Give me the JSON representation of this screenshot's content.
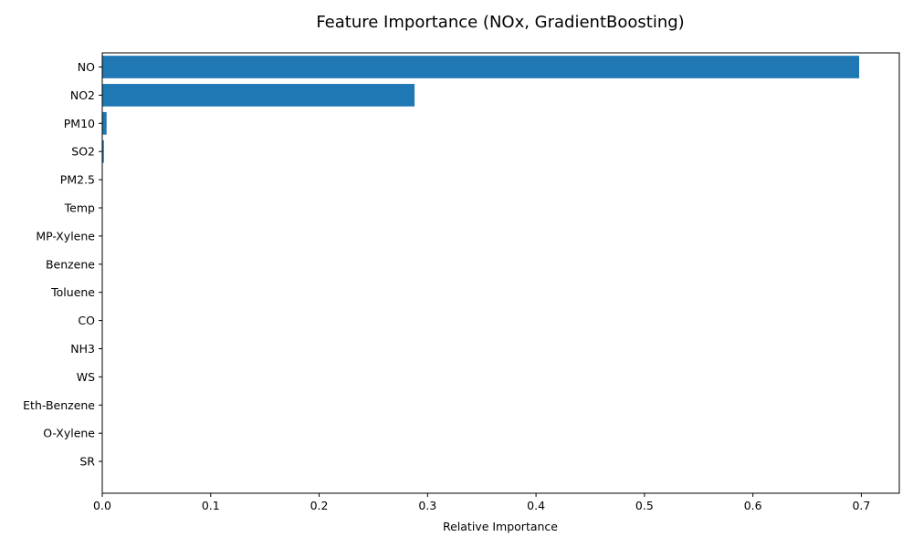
{
  "chart_data": {
    "type": "bar",
    "orientation": "horizontal",
    "title": "Feature Importance (NOx, GradientBoosting)",
    "xlabel": "Relative Importance",
    "ylabel": "",
    "xlim": [
      0,
      0.735
    ],
    "xticks": [
      0.0,
      0.1,
      0.2,
      0.3,
      0.4,
      0.5,
      0.6,
      0.7
    ],
    "xtick_labels": [
      "0.0",
      "0.1",
      "0.2",
      "0.3",
      "0.4",
      "0.5",
      "0.6",
      "0.7"
    ],
    "categories": [
      "NO",
      "NO2",
      "PM10",
      "SO2",
      "PM2.5",
      "Temp",
      "MP-Xylene",
      "Benzene",
      "Toluene",
      "CO",
      "NH3",
      "WS",
      "Eth-Benzene",
      "O-Xylene",
      "SR"
    ],
    "values": [
      0.698,
      0.288,
      0.004,
      0.0015,
      0.0004,
      0.0003,
      0.0002,
      0.0002,
      0.0002,
      0.0001,
      0.0001,
      0.0001,
      0.0001,
      0.0001,
      0.0001
    ],
    "bar_color": "#1f77b4",
    "grid": false,
    "legend": "none"
  }
}
